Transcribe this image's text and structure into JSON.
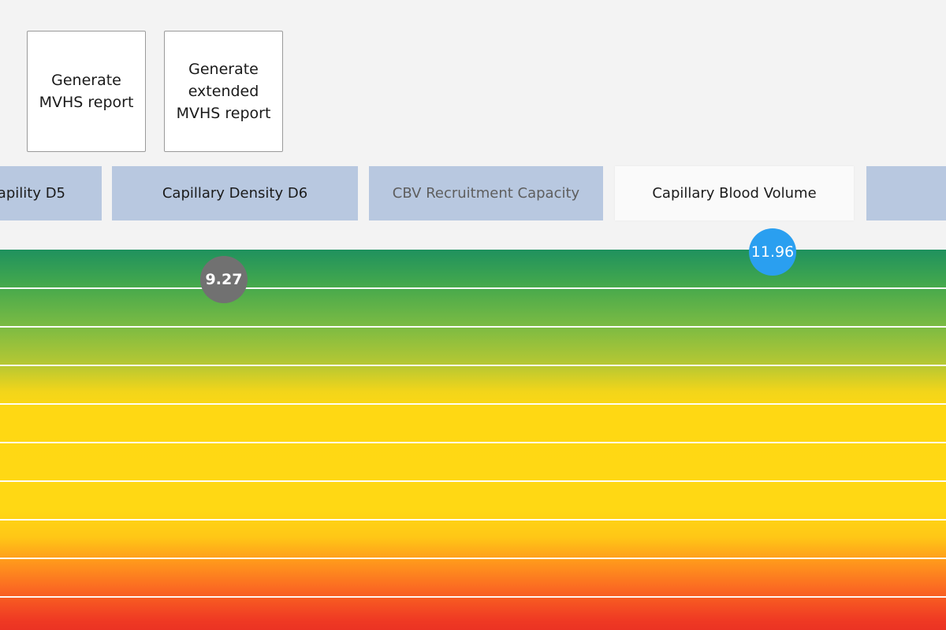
{
  "buttons": {
    "generate_report": "Generate MVHS report",
    "generate_extended_report": "Generate extended MVHS report"
  },
  "tabs": [
    {
      "label": "apility D5"
    },
    {
      "label": "Capillary Density D6"
    },
    {
      "label": "CBV Recruitment Capacity"
    },
    {
      "label": "Capillary Blood Volume",
      "selected": true
    },
    {
      "label": ""
    }
  ],
  "markers": {
    "previous_value": "9.27",
    "current_value": "11.96",
    "previous_color": "#717171",
    "current_color": "#2a9ff0"
  },
  "colors": {
    "tab_bg": "#b8c8e0",
    "tab_selected_bg": "#fafafa",
    "scale_top": "#1f915e",
    "scale_middle": "#ffd814",
    "scale_bottom": "#eb3323"
  }
}
